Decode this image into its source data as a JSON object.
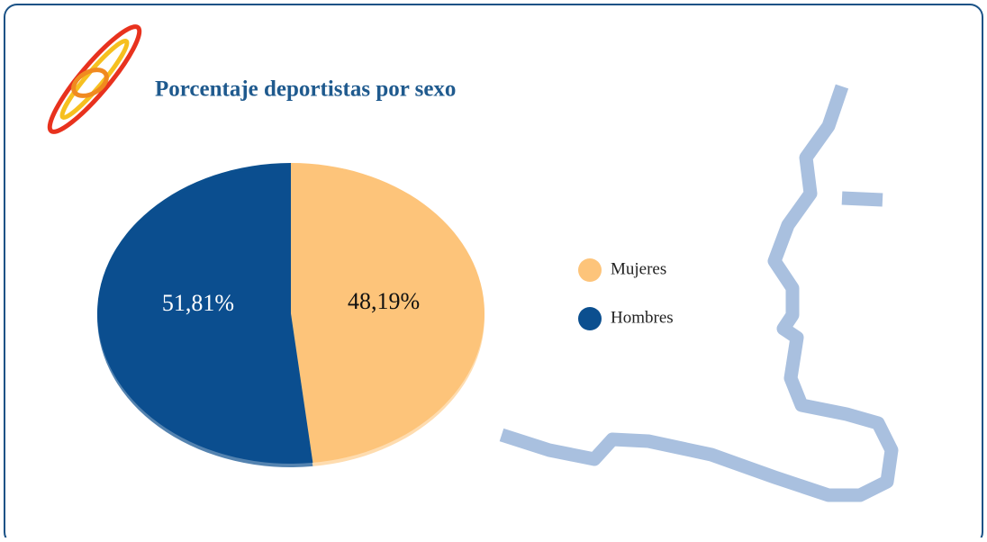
{
  "chart_data": {
    "type": "pie",
    "title": "Porcentaje deportistas por sexo",
    "categories": [
      "Mujeres",
      "Hombres"
    ],
    "values": [
      48.19,
      51.81
    ],
    "value_labels": [
      "48,19%",
      "51,81%"
    ],
    "colors": [
      "#fdc47a",
      "#0b4f8f"
    ],
    "legend": "right"
  }
}
